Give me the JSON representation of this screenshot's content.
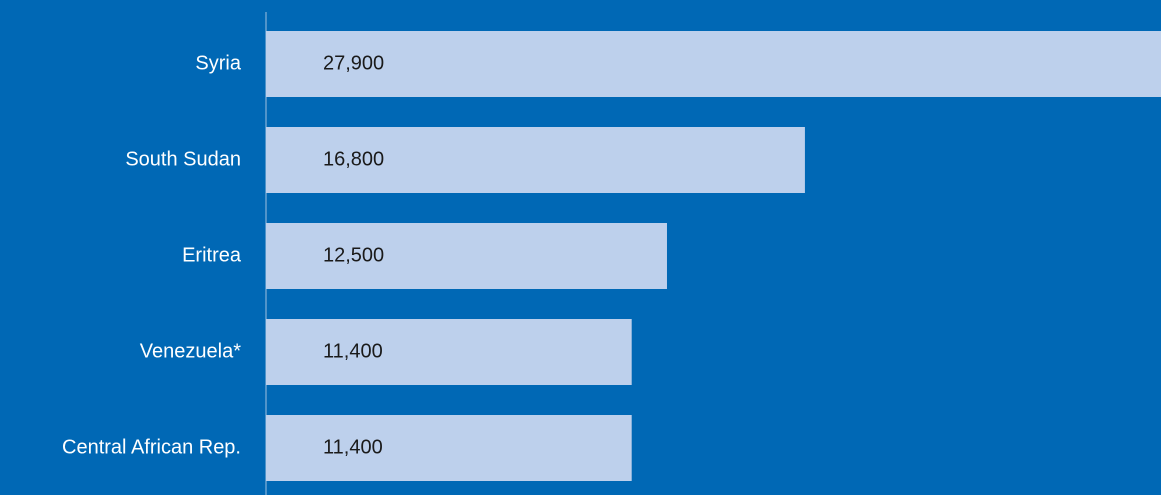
{
  "chart_data": {
    "type": "bar",
    "orientation": "horizontal",
    "categories": [
      "Syria",
      "South Sudan",
      "Eritrea",
      "Venezuela*",
      "Central African Rep."
    ],
    "values": [
      27900,
      16800,
      12500,
      11400,
      11400
    ],
    "value_labels": [
      "27,900",
      "16,800",
      "12,500",
      "11,400",
      "11,400"
    ],
    "color": "#bdd0ec",
    "background": "#0068b5"
  }
}
